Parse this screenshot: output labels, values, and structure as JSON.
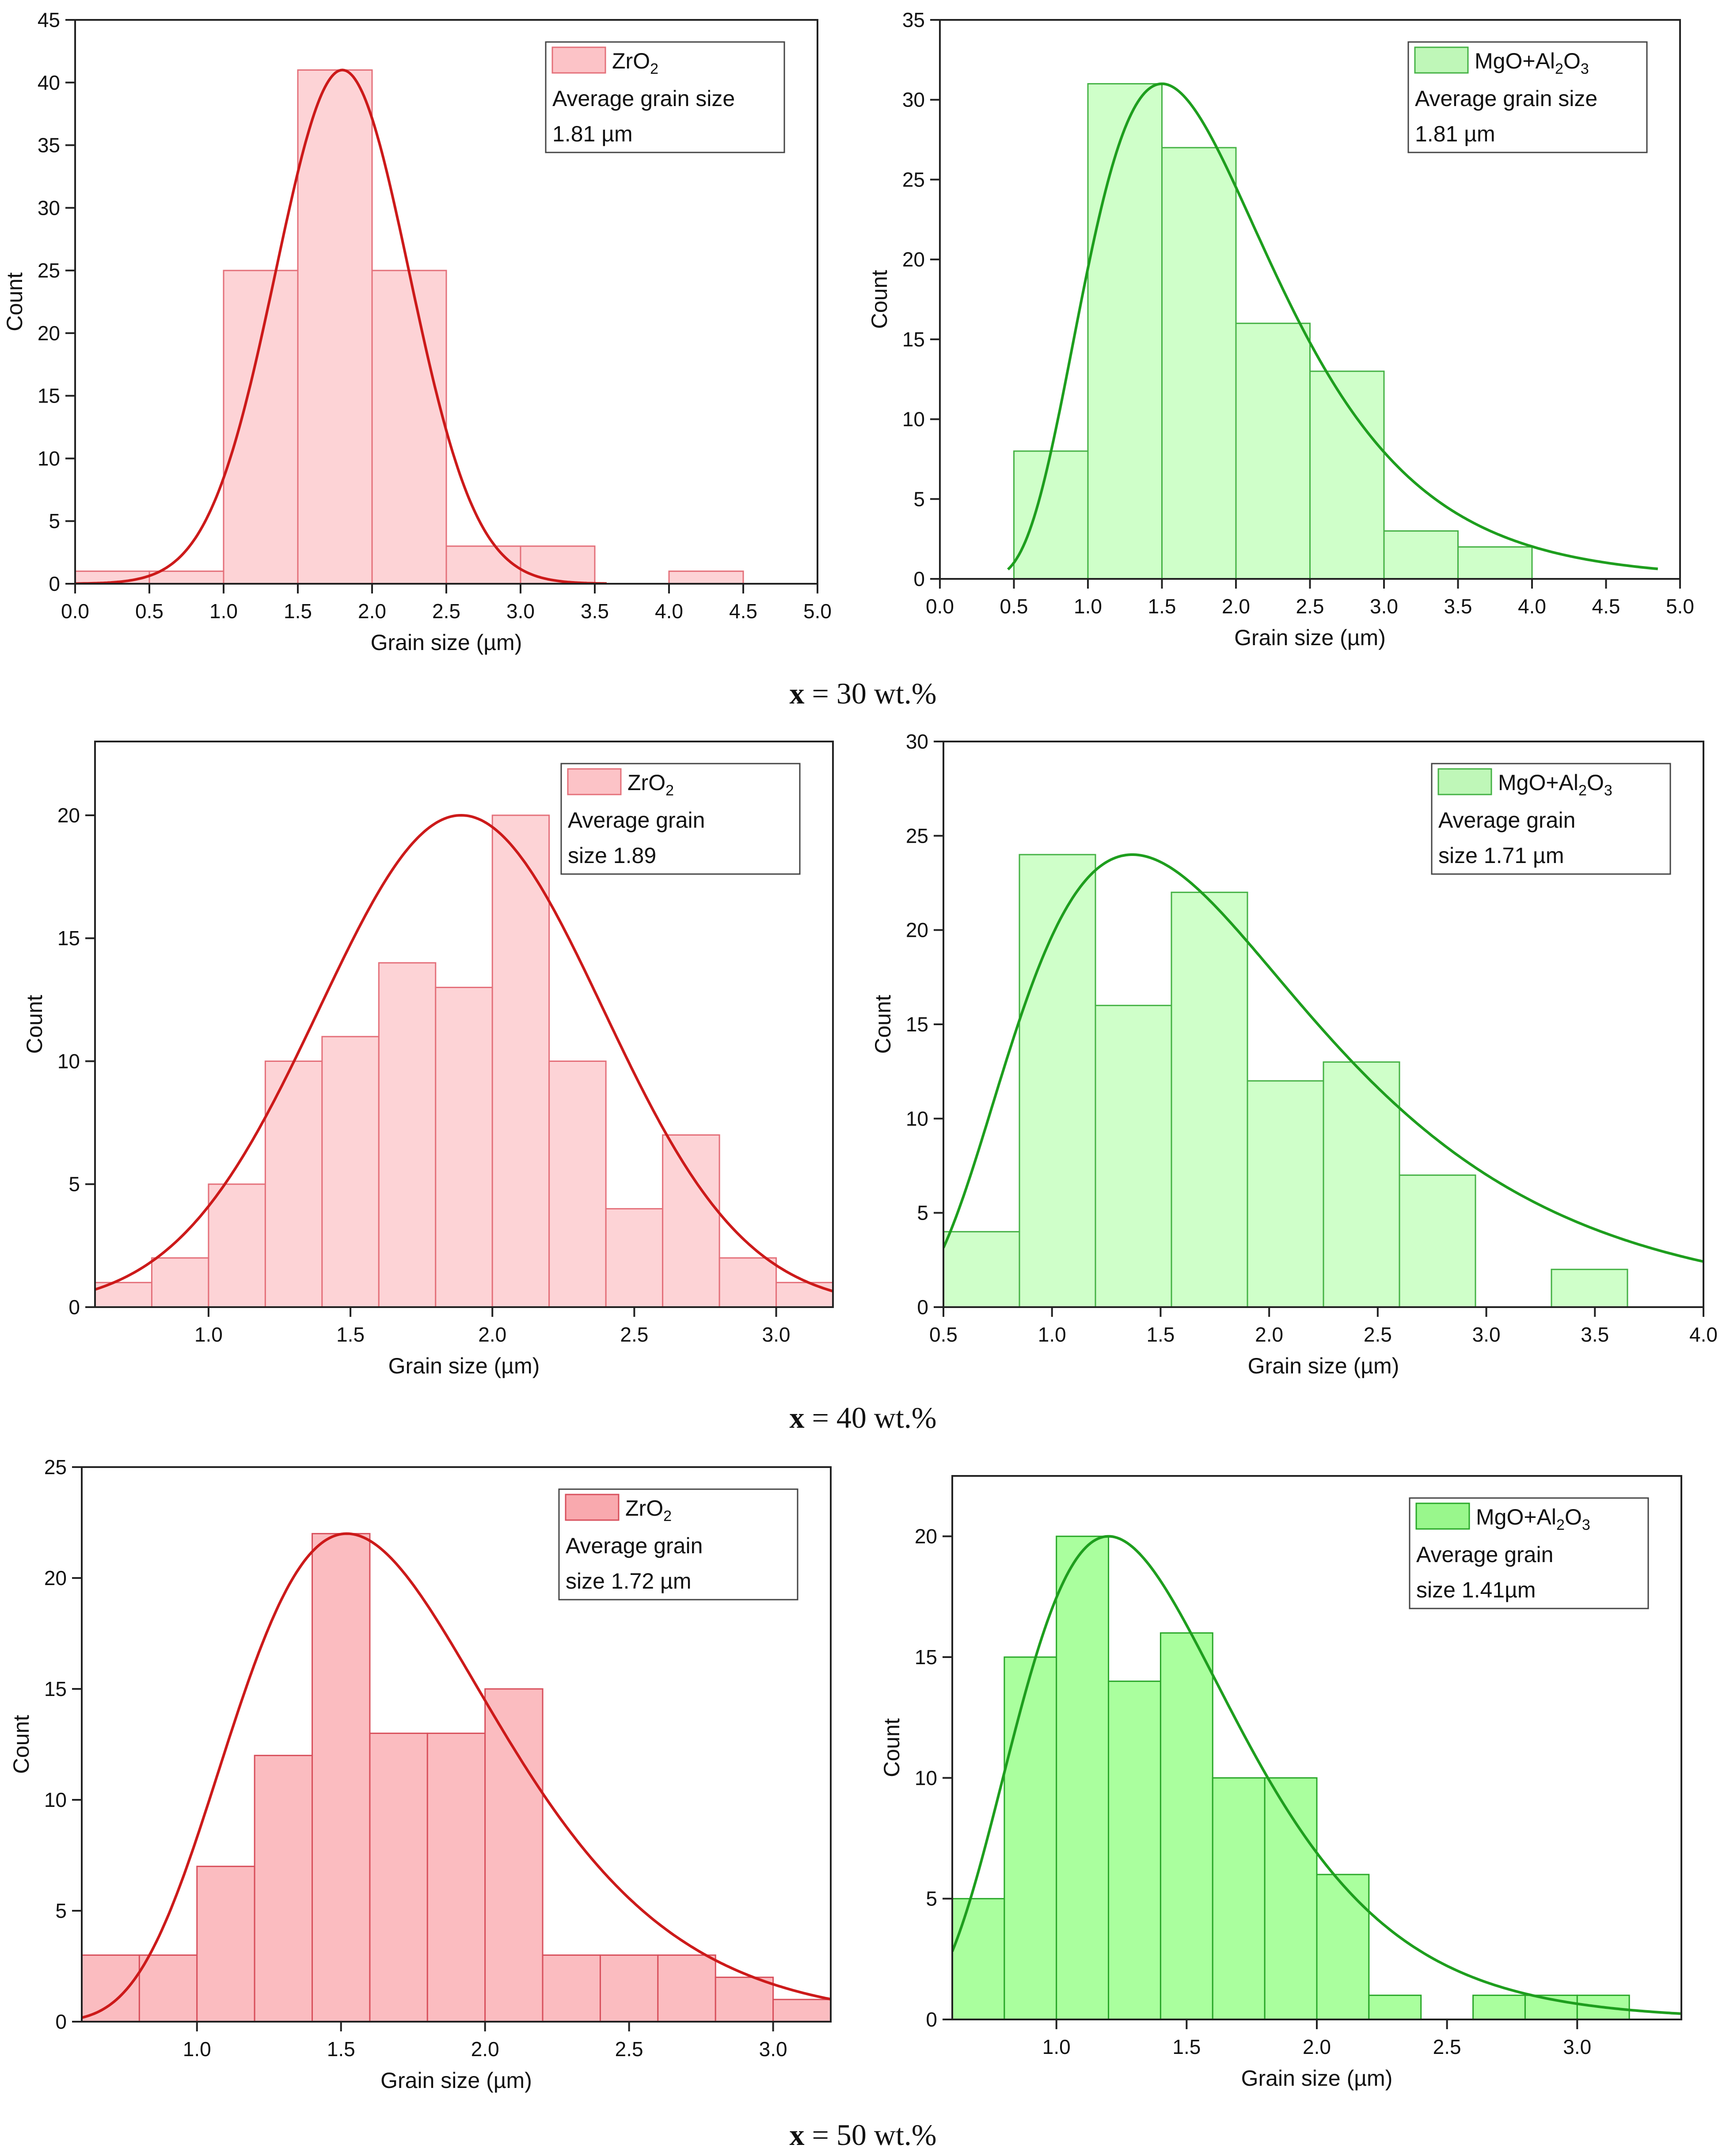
{
  "figure": {
    "row_captions": [
      {
        "var": "x",
        "eq": " = 30 wt.%"
      },
      {
        "var": "x",
        "eq": " = 40 wt.%"
      },
      {
        "var": "x",
        "eq": " = 50 wt.%"
      }
    ]
  },
  "chart_data": [
    {
      "id": "r1-zro2",
      "type": "bar",
      "title": "",
      "xlabel": "Grain size (µm)",
      "ylabel": "Count",
      "xlim": [
        0,
        5
      ],
      "ylim": [
        0,
        45
      ],
      "xticks": [
        0.0,
        0.5,
        1.0,
        1.5,
        2.0,
        2.5,
        3.0,
        3.5,
        4.0,
        4.5,
        5.0
      ],
      "yticks": [
        0,
        5,
        10,
        15,
        20,
        25,
        30,
        35,
        40,
        45
      ],
      "xtick_decimals": 1,
      "bins": [
        [
          0,
          0.5,
          1
        ],
        [
          0.5,
          1.0,
          1
        ],
        [
          1.0,
          1.5,
          25
        ],
        [
          1.5,
          2.0,
          41
        ],
        [
          2.0,
          2.5,
          25
        ],
        [
          2.5,
          3.0,
          3
        ],
        [
          3.0,
          3.5,
          3
        ],
        [
          4.0,
          4.5,
          1
        ]
      ],
      "fit": {
        "kind": "normal",
        "center": 1.8,
        "width": 0.45,
        "peak": 41,
        "from": 0.0,
        "to": 3.58
      },
      "legend": {
        "label": "ZrO",
        "sub": "2",
        "label_after": "",
        "lines": [
          "Average grain size",
          "1.81 µm"
        ],
        "position": "top-right"
      },
      "colors": {
        "fill": "#fdd3d6",
        "edge": "#e4707a",
        "line": "#cc1a1a",
        "legend_fill": "#fcc3c7"
      }
    },
    {
      "id": "r1-mgo",
      "type": "bar",
      "title": "",
      "xlabel": "Grain size (µm)",
      "ylabel": "Count",
      "xlim": [
        0,
        5
      ],
      "ylim": [
        0,
        35
      ],
      "xticks": [
        0.0,
        0.5,
        1.0,
        1.5,
        2.0,
        2.5,
        3.0,
        3.5,
        4.0,
        4.5,
        5.0
      ],
      "yticks": [
        0,
        5,
        10,
        15,
        20,
        25,
        30,
        35
      ],
      "xtick_decimals": 1,
      "bins": [
        [
          0.5,
          1.0,
          8
        ],
        [
          1.0,
          1.5,
          31
        ],
        [
          1.5,
          2.0,
          27
        ],
        [
          2.0,
          2.5,
          16
        ],
        [
          2.5,
          3.0,
          13
        ],
        [
          3.0,
          3.5,
          3
        ],
        [
          3.5,
          4.0,
          2
        ]
      ],
      "fit": {
        "kind": "lognormal",
        "center": 1.5,
        "sigma": 0.42,
        "peak": 31,
        "from": 0.46,
        "to": 4.85
      },
      "legend": {
        "label": "MgO+Al",
        "sub": "2",
        "label_after": "O3",
        "lines": [
          "Average grain size",
          "1.81 µm"
        ],
        "position": "top-right"
      },
      "colors": {
        "fill": "#cfffc9",
        "edge": "#45b245",
        "line": "#1e9e1e",
        "legend_fill": "#bff7b8"
      }
    },
    {
      "id": "r2-zro2",
      "type": "bar",
      "title": "",
      "xlabel": "Grain size (µm)",
      "ylabel": "Count",
      "xlim": [
        0.6,
        3.2
      ],
      "ylim": [
        0,
        23
      ],
      "xticks": [
        1.0,
        1.5,
        2.0,
        2.5,
        3.0
      ],
      "yticks": [
        0,
        5,
        10,
        15,
        20
      ],
      "xtick_decimals": 1,
      "bins": [
        [
          0.6,
          0.8,
          1
        ],
        [
          0.8,
          1.0,
          2
        ],
        [
          1.0,
          1.2,
          5
        ],
        [
          1.2,
          1.4,
          10
        ],
        [
          1.4,
          1.6,
          11
        ],
        [
          1.6,
          1.8,
          14
        ],
        [
          1.8,
          2.0,
          13
        ],
        [
          2.0,
          2.2,
          20
        ],
        [
          2.2,
          2.4,
          10
        ],
        [
          2.4,
          2.6,
          4
        ],
        [
          2.6,
          2.8,
          7
        ],
        [
          2.8,
          3.0,
          2
        ],
        [
          3.0,
          3.2,
          1
        ]
      ],
      "fit": {
        "kind": "normal",
        "center": 1.89,
        "width": 0.5,
        "peak": 20,
        "from": 0.6,
        "to": 3.2
      },
      "legend": {
        "label": "ZrO",
        "sub": "2",
        "label_after": "",
        "lines": [
          "Average grain",
          "size 1.89"
        ],
        "position": "top-right"
      },
      "colors": {
        "fill": "#fdd3d6",
        "edge": "#e4707a",
        "line": "#cc1a1a",
        "legend_fill": "#fcc3c7"
      }
    },
    {
      "id": "r2-mgo",
      "type": "bar",
      "title": "",
      "xlabel": "Grain size (µm)",
      "ylabel": "Count",
      "xlim": [
        0.5,
        4.0
      ],
      "ylim": [
        0,
        30
      ],
      "xticks": [
        0.5,
        1.0,
        1.5,
        2.0,
        2.5,
        3.0,
        3.5,
        4.0
      ],
      "yticks": [
        0,
        5,
        10,
        15,
        20,
        25,
        30
      ],
      "xtick_decimals": 1,
      "bins": [
        [
          0.5,
          0.85,
          4
        ],
        [
          0.85,
          1.2,
          24
        ],
        [
          1.2,
          1.55,
          16
        ],
        [
          1.55,
          1.9,
          22
        ],
        [
          1.9,
          2.25,
          12
        ],
        [
          2.25,
          2.6,
          13
        ],
        [
          2.6,
          2.95,
          7
        ],
        [
          3.3,
          3.65,
          2
        ]
      ],
      "fit": {
        "kind": "lognormal",
        "center": 1.37,
        "sigma": 0.5,
        "peak": 24,
        "from": 0.5,
        "to": 4.0
      },
      "legend": {
        "label": "MgO+Al",
        "sub": "2",
        "label_after": "O3",
        "lines": [
          "Average grain",
          "size 1.71 µm"
        ],
        "position": "top-right"
      },
      "colors": {
        "fill": "#cfffc9",
        "edge": "#45b245",
        "line": "#1e9e1e",
        "legend_fill": "#bff7b8"
      }
    },
    {
      "id": "r3-zro2",
      "type": "bar",
      "title": "",
      "xlabel": "Grain size (µm)",
      "ylabel": "Count",
      "xlim": [
        0.6,
        3.2
      ],
      "ylim": [
        0,
        25
      ],
      "xticks": [
        1.0,
        1.5,
        2.0,
        2.5,
        3.0
      ],
      "yticks": [
        0,
        5,
        10,
        15,
        20,
        25
      ],
      "xtick_decimals": 1,
      "bins": [
        [
          0.6,
          0.8,
          3
        ],
        [
          0.8,
          1.0,
          3
        ],
        [
          1.0,
          1.2,
          7
        ],
        [
          1.2,
          1.4,
          12
        ],
        [
          1.4,
          1.6,
          22
        ],
        [
          1.6,
          1.8,
          13
        ],
        [
          1.8,
          2.0,
          13
        ],
        [
          2.0,
          2.2,
          15
        ],
        [
          2.2,
          2.4,
          3
        ],
        [
          2.4,
          2.6,
          3
        ],
        [
          2.6,
          2.8,
          3
        ],
        [
          2.8,
          3.0,
          2
        ],
        [
          3.0,
          3.2,
          1
        ]
      ],
      "fit": {
        "kind": "lognormal",
        "center": 1.52,
        "sigma": 0.3,
        "peak": 22,
        "from": 0.6,
        "to": 3.2
      },
      "legend": {
        "label": "ZrO",
        "sub": "2",
        "label_after": "",
        "lines": [
          "Average grain",
          "size 1.72 µm"
        ],
        "position": "top-right"
      },
      "colors": {
        "fill": "#fbbcc0",
        "edge": "#d8505c",
        "line": "#cc1a1a",
        "legend_fill": "#f9a9ae"
      }
    },
    {
      "id": "r3-mgo",
      "type": "bar",
      "title": "",
      "xlabel": "Grain size (µm)",
      "ylabel": "Count",
      "xlim": [
        0.6,
        3.4
      ],
      "ylim": [
        0,
        22.5
      ],
      "xticks": [
        1.0,
        1.5,
        2.0,
        2.5,
        3.0
      ],
      "yticks": [
        0,
        5,
        10,
        15,
        20
      ],
      "xtick_decimals": 1,
      "bins": [
        [
          0.6,
          0.8,
          5
        ],
        [
          0.8,
          1.0,
          15
        ],
        [
          1.0,
          1.2,
          20
        ],
        [
          1.2,
          1.4,
          14
        ],
        [
          1.4,
          1.6,
          16
        ],
        [
          1.6,
          1.8,
          10
        ],
        [
          1.8,
          2.0,
          10
        ],
        [
          2.0,
          2.2,
          6
        ],
        [
          2.2,
          2.4,
          1
        ],
        [
          2.6,
          2.8,
          1
        ],
        [
          2.8,
          3.0,
          1
        ],
        [
          3.0,
          3.2,
          1
        ]
      ],
      "fit": {
        "kind": "lognormal",
        "center": 1.2,
        "sigma": 0.35,
        "peak": 20,
        "from": 0.6,
        "to": 3.4
      },
      "legend": {
        "label": "MgO+Al",
        "sub": "2",
        "label_after": "O3",
        "lines": [
          "Average grain",
          "size 1.41µm"
        ],
        "position": "top-right"
      },
      "colors": {
        "fill": "#aaff9e",
        "edge": "#2aa82a",
        "line": "#1e9e1e",
        "legend_fill": "#99f78c"
      }
    }
  ]
}
